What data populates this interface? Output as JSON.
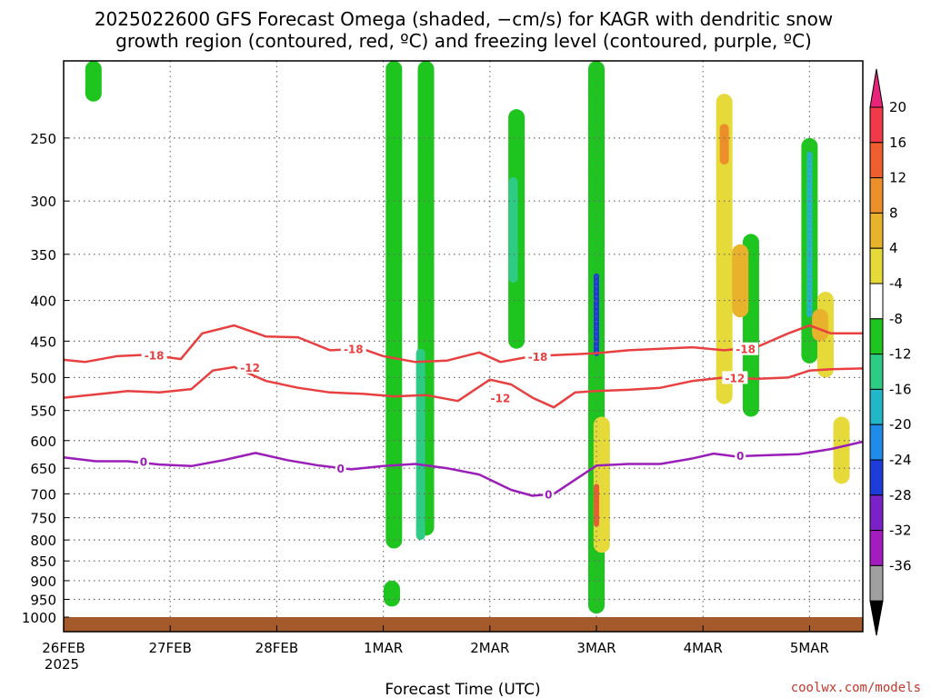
{
  "chart_data": {
    "type": "heatmap",
    "title_line1": "2025022600 GFS Forecast Omega (shaded, −cm/s) for KAGR with dendritic snow",
    "title_line2": "growth region (contoured, red, ºC) and freezing level (contoured, purple, ºC)",
    "xlabel": "Forecast Time (UTC)",
    "credit": "coolwx.com/models",
    "x_start_label": "26FEB",
    "x_start_year": "2025",
    "x_ticks": [
      {
        "label": "26FEB",
        "day": 0
      },
      {
        "label": "27FEB",
        "day": 1
      },
      {
        "label": "28FEB",
        "day": 2
      },
      {
        "label": "1MAR",
        "day": 3
      },
      {
        "label": "2MAR",
        "day": 4
      },
      {
        "label": "3MAR",
        "day": 5
      },
      {
        "label": "4MAR",
        "day": 6
      },
      {
        "label": "5MAR",
        "day": 7
      }
    ],
    "xlim": [
      0,
      7.5
    ],
    "y_ticks": [
      250,
      300,
      350,
      400,
      450,
      500,
      550,
      600,
      650,
      700,
      750,
      800,
      850,
      900,
      950,
      1000
    ],
    "ylim": [
      200,
      1000
    ],
    "y_scale": "log",
    "grid": true,
    "colorbar": {
      "labels": [
        "20",
        "16",
        "12",
        "8",
        "4",
        "-4",
        "-8",
        "-12",
        "-16",
        "-20",
        "-24",
        "-28",
        "-32",
        "-36"
      ],
      "colors": [
        "#f03a4a",
        "#ee5e2e",
        "#ec8f2a",
        "#e8b22c",
        "#e6da3a",
        "#ffffff",
        "#1ec51e",
        "#2ecb84",
        "#22b6c8",
        "#1e8ce8",
        "#1e3cd8",
        "#7a22c8",
        "#a41cc0",
        "#a0a0a0"
      ],
      "top_arrow_color": "#e8247a",
      "bottom_arrow_color": "#000000"
    },
    "series": [
      {
        "name": "-18",
        "color": "#e84040",
        "x": [
          0,
          0.2,
          0.5,
          0.8,
          1.1,
          1.3,
          1.6,
          1.9,
          2.2,
          2.5,
          2.8,
          3.0,
          3.3,
          3.6,
          3.9,
          4.1,
          4.4,
          4.7,
          5.0,
          5.3,
          5.6,
          5.9,
          6.2,
          6.5,
          6.8,
          7.0,
          7.2,
          7.5
        ],
        "y": [
          475,
          478,
          470,
          468,
          474,
          440,
          430,
          444,
          445,
          462,
          460,
          470,
          478,
          476,
          465,
          478,
          470,
          468,
          466,
          462,
          460,
          458,
          462,
          458,
          440,
          430,
          440,
          440
        ]
      },
      {
        "name": "-12",
        "color": "#e84040",
        "x": [
          0,
          0.3,
          0.6,
          0.9,
          1.2,
          1.4,
          1.6,
          1.9,
          2.2,
          2.5,
          2.8,
          3.1,
          3.4,
          3.7,
          4.0,
          4.2,
          4.4,
          4.6,
          4.8,
          5.0,
          5.3,
          5.6,
          5.9,
          6.2,
          6.5,
          6.8,
          7.0,
          7.2,
          7.5
        ],
        "y": [
          530,
          525,
          520,
          522,
          517,
          490,
          485,
          505,
          515,
          522,
          524,
          528,
          526,
          535,
          503,
          510,
          530,
          545,
          522,
          520,
          518,
          515,
          505,
          500,
          502,
          500,
          490,
          488,
          487
        ]
      },
      {
        "name": "0",
        "color": "#9a1eb8",
        "x": [
          0,
          0.3,
          0.6,
          0.9,
          1.2,
          1.5,
          1.8,
          2.1,
          2.4,
          2.7,
          3.0,
          3.3,
          3.6,
          3.9,
          4.2,
          4.4,
          4.6,
          4.8,
          5.0,
          5.3,
          5.6,
          5.9,
          6.1,
          6.3,
          6.6,
          6.9,
          7.2,
          7.5
        ],
        "y": [
          630,
          637,
          637,
          643,
          646,
          635,
          622,
          635,
          645,
          652,
          646,
          642,
          650,
          662,
          692,
          704,
          700,
          672,
          645,
          642,
          642,
          632,
          623,
          628,
          626,
          624,
          615,
          602
        ]
      }
    ],
    "contour_labels": [
      {
        "text": "-18",
        "color": "#e84040",
        "day": 0.85,
        "p": 468
      },
      {
        "text": "-18",
        "color": "#e84040",
        "day": 2.72,
        "p": 460
      },
      {
        "text": "-18",
        "color": "#e84040",
        "day": 4.45,
        "p": 470
      },
      {
        "text": "-18",
        "color": "#e84040",
        "day": 6.4,
        "p": 460
      },
      {
        "text": "-12",
        "color": "#e84040",
        "day": 1.75,
        "p": 485
      },
      {
        "text": "-12",
        "color": "#e84040",
        "day": 4.1,
        "p": 530
      },
      {
        "text": "-12",
        "color": "#e84040",
        "day": 6.3,
        "p": 500
      },
      {
        "text": "0",
        "color": "#9a1eb8",
        "day": 0.75,
        "p": 637
      },
      {
        "text": "0",
        "color": "#9a1eb8",
        "day": 2.6,
        "p": 650
      },
      {
        "text": "0",
        "color": "#9a1eb8",
        "day": 4.55,
        "p": 700
      },
      {
        "text": "0",
        "color": "#9a1eb8",
        "day": 6.35,
        "p": 626
      }
    ],
    "omega_regions": [
      {
        "value": -8,
        "day": 0.28,
        "p_top": 200,
        "p_bottom": 225
      },
      {
        "value": -8,
        "day": 3.1,
        "p_top": 200,
        "p_bottom": 820
      },
      {
        "value": -8,
        "day": 3.4,
        "p_top": 200,
        "p_bottom": 790
      },
      {
        "value": -12,
        "day": 3.35,
        "p_top": 460,
        "p_bottom": 800
      },
      {
        "value": -8,
        "day": 3.08,
        "p_top": 900,
        "p_bottom": 970
      },
      {
        "value": -8,
        "day": 4.25,
        "p_top": 230,
        "p_bottom": 460
      },
      {
        "value": -12,
        "day": 4.22,
        "p_top": 280,
        "p_bottom": 380
      },
      {
        "value": -8,
        "day": 5.0,
        "p_top": 200,
        "p_bottom": 990
      },
      {
        "value": -16,
        "day": 5.0,
        "p_top": 400,
        "p_bottom": 460
      },
      {
        "value": -24,
        "day": 5.0,
        "p_top": 370,
        "p_bottom": 470
      },
      {
        "value": -8,
        "day": 6.45,
        "p_top": 330,
        "p_bottom": 560
      },
      {
        "value": -8,
        "day": 7.0,
        "p_top": 250,
        "p_bottom": 480
      },
      {
        "value": -16,
        "day": 7.0,
        "p_top": 260,
        "p_bottom": 420
      },
      {
        "value": 4,
        "day": 6.2,
        "p_top": 220,
        "p_bottom": 540
      },
      {
        "value": 12,
        "day": 6.2,
        "p_top": 240,
        "p_bottom": 270
      },
      {
        "value": 8,
        "day": 6.35,
        "p_top": 340,
        "p_bottom": 420
      },
      {
        "value": 4,
        "day": 5.05,
        "p_top": 560,
        "p_bottom": 830
      },
      {
        "value": 16,
        "day": 5.0,
        "p_top": 680,
        "p_bottom": 770
      },
      {
        "value": 4,
        "day": 7.15,
        "p_top": 390,
        "p_bottom": 500
      },
      {
        "value": 8,
        "day": 7.1,
        "p_top": 410,
        "p_bottom": 450
      },
      {
        "value": 4,
        "day": 7.3,
        "p_top": 560,
        "p_bottom": 680
      }
    ]
  }
}
